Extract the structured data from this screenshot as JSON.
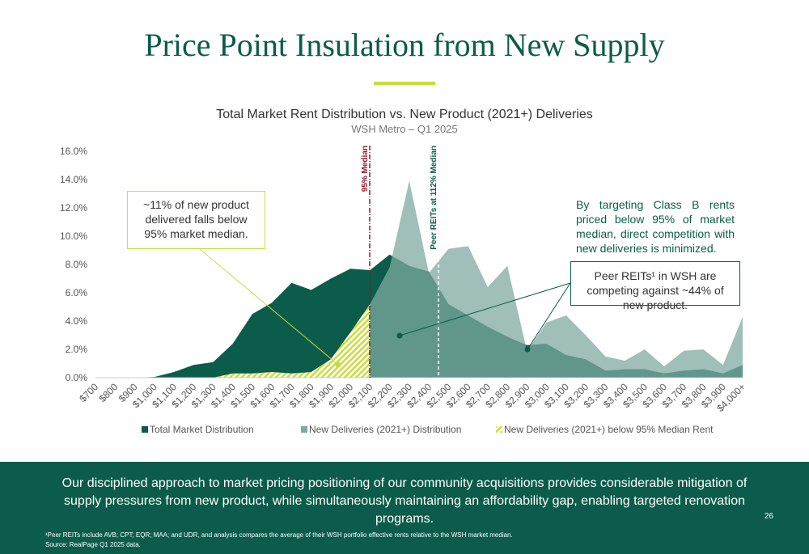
{
  "header": {
    "title": "Price Point Insulation from New Supply"
  },
  "chart_data": {
    "type": "area",
    "title": "Total Market Rent Distribution vs. New Product (2021+) Deliveries",
    "subtitle": "WSH Metro – Q1 2025",
    "categories": [
      "$700",
      "$800",
      "$900",
      "$1,000",
      "$1,100",
      "$1,200",
      "$1,300",
      "$1,400",
      "$1,500",
      "$1,600",
      "$1,700",
      "$1,800",
      "$1,900",
      "$2,000",
      "$2,100",
      "$2,200",
      "$2,300",
      "$2,400",
      "$2,500",
      "$2,600",
      "$2,700",
      "$2,800",
      "$2,900",
      "$3,000",
      "$3,100",
      "$3,200",
      "$3,300",
      "$3,400",
      "$3,500",
      "$3,600",
      "$3,700",
      "$3,800",
      "$3,900",
      "$4,000+"
    ],
    "series": [
      {
        "name": "Total Market Distribution",
        "color": "#0b5c4a",
        "values": [
          0,
          0,
          0,
          0.05,
          0.4,
          0.9,
          1.1,
          2.4,
          4.5,
          5.3,
          6.7,
          6.2,
          7.0,
          7.7,
          7.6,
          8.7,
          7.9,
          7.5,
          5.2,
          4.4,
          3.6,
          2.9,
          2.3,
          2.4,
          1.6,
          1.3,
          0.5,
          0.6,
          0.6,
          0.3,
          0.5,
          0.6,
          0.3,
          0.9
        ]
      },
      {
        "name": "New Deliveries (2021+) Distribution",
        "color": "#7fa9a0",
        "values": [
          0,
          0,
          0,
          0,
          0,
          0,
          0,
          0.3,
          0.3,
          0.4,
          0.3,
          0.4,
          1.3,
          3.2,
          5.2,
          7.8,
          13.9,
          7.4,
          9.1,
          9.3,
          6.4,
          7.9,
          1.9,
          3.9,
          4.4,
          3.0,
          1.5,
          1.2,
          2.0,
          0.8,
          1.9,
          2.0,
          0.9,
          4.3
        ]
      },
      {
        "name": "New Deliveries (2021+) below 95% Median Rent",
        "color": "#c9dc3e",
        "pattern": "hatch",
        "values": [
          0,
          0,
          0,
          0,
          0,
          0,
          0,
          0.3,
          0.3,
          0.4,
          0.3,
          0.4,
          1.3,
          3.2,
          5.2,
          null,
          null,
          null,
          null,
          null,
          null,
          null,
          null,
          null,
          null,
          null,
          null,
          null,
          null,
          null,
          null,
          null,
          null,
          null
        ]
      }
    ],
    "ylim": [
      0,
      16
    ],
    "yticks": [
      {
        "value": 0,
        "label": "0.0%"
      },
      {
        "value": 2,
        "label": "2.0%"
      },
      {
        "value": 4,
        "label": "4.0%"
      },
      {
        "value": 6,
        "label": "6.0%"
      },
      {
        "value": 8,
        "label": "8.0%"
      },
      {
        "value": 10,
        "label": "10.0%"
      },
      {
        "value": 12,
        "label": "12.0%"
      },
      {
        "value": 14,
        "label": "14.0%"
      },
      {
        "value": 16,
        "label": "16.0%"
      }
    ],
    "reference_lines": [
      "95% Median",
      "Peer REITs at 112% Median"
    ],
    "annotations": [
      "~11% of new product delivered falls below 95% market median.",
      "By targeting Class B rents priced below 95% of market median, direct competition with new deliveries is minimized.",
      "Peer REITs¹ in WSH are competing against ~44% of new product."
    ]
  },
  "banner": "Our disciplined approach to market pricing positioning of our community acquisitions provides considerable mitigation of supply pressures from new product, while simultaneously maintaining an affordability gap, enabling targeted renovation programs.",
  "page_number": "26",
  "footnotes": [
    "¹Peer REITs include AVB; CPT; EQR; MAA; and UDR, and analysis compares the average of their WSH portfolio effective rents relative to the WSH market median.",
    "Source: RealPage Q1 2025 data."
  ]
}
